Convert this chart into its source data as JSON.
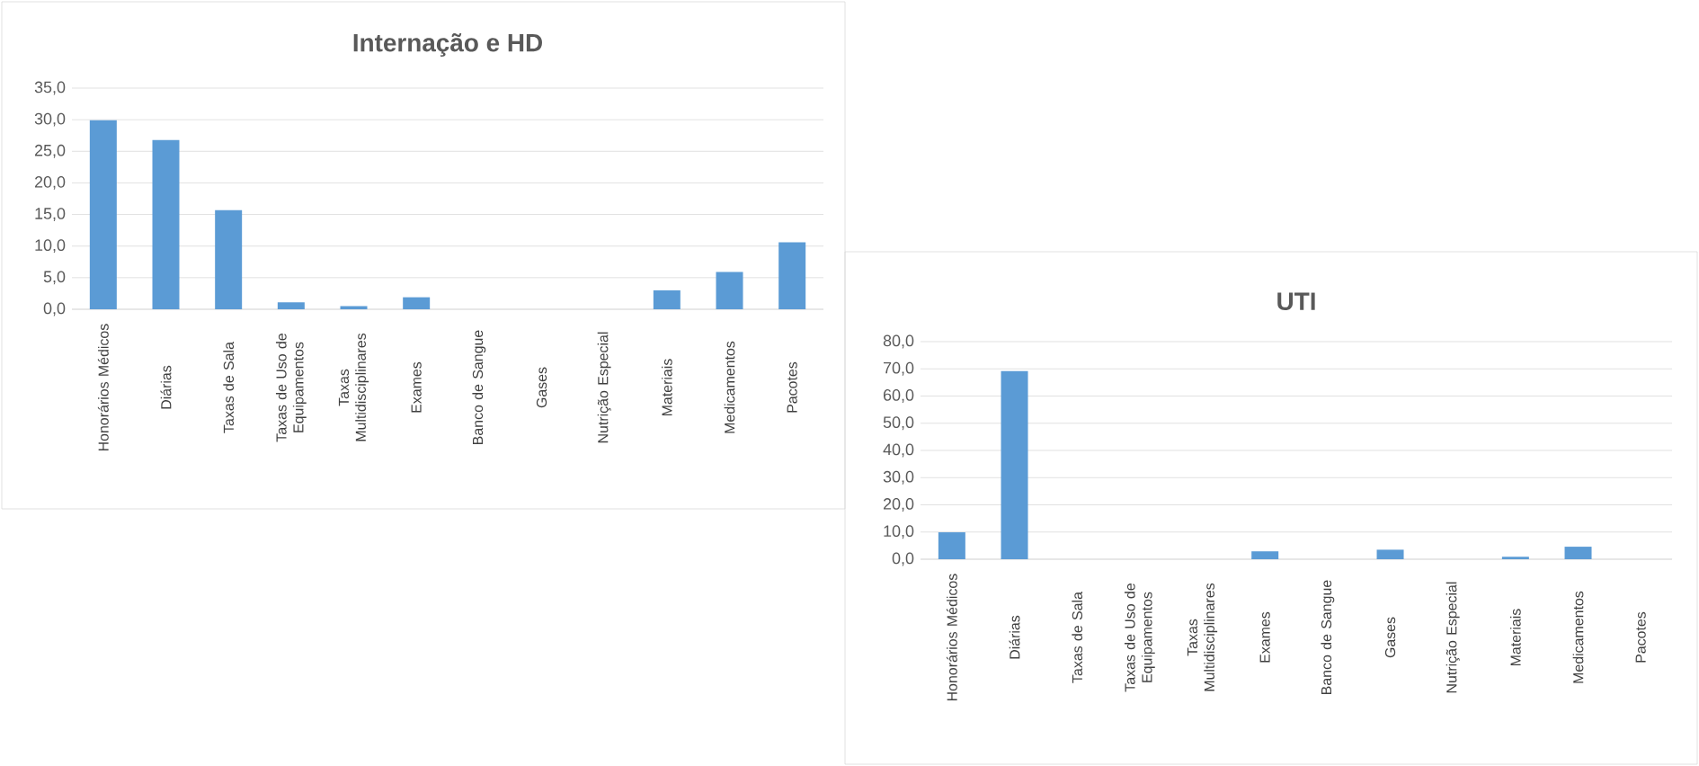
{
  "chart_data": [
    {
      "type": "bar",
      "title": "Internação e HD",
      "categories": [
        "Honorários Médicos",
        "Diárias",
        "Taxas de Sala",
        "Taxas de Uso de Equipamentos",
        "Taxas Multidisciplinares",
        "Exames",
        "Banco de Sangue",
        "Gases",
        "Nutrição Especial",
        "Materiais",
        "Medicamentos",
        "Pacotes"
      ],
      "values": [
        29.9,
        26.8,
        15.7,
        1.1,
        0.5,
        1.9,
        0,
        0,
        0,
        3.0,
        5.9,
        10.6
      ],
      "color": "#5b9bd5",
      "ylim": [
        0,
        35
      ],
      "yticks": [
        {
          "value": 0,
          "label": "0,0"
        },
        {
          "value": 5,
          "label": "5,0"
        },
        {
          "value": 10,
          "label": "10,0"
        },
        {
          "value": 15,
          "label": "15,0"
        },
        {
          "value": 20,
          "label": "20,0"
        },
        {
          "value": 25,
          "label": "25,0"
        },
        {
          "value": 30,
          "label": "30,0"
        },
        {
          "value": 35,
          "label": "35,0"
        }
      ],
      "grid": "y"
    },
    {
      "type": "bar",
      "title": "UTI",
      "categories": [
        "Honorários Médicos",
        "Diárias",
        "Taxas de Sala",
        "Taxas de Uso de Equipamentos",
        "Taxas Multidisciplinares",
        "Exames",
        "Banco de Sangue",
        "Gases",
        "Nutrição Especial",
        "Materiais",
        "Medicamentos",
        "Pacotes"
      ],
      "values": [
        9.9,
        69.2,
        0,
        0,
        0,
        2.9,
        0,
        3.5,
        0,
        0.9,
        4.6,
        0
      ],
      "color": "#5b9bd5",
      "ylim": [
        0,
        80
      ],
      "yticks": [
        {
          "value": 0,
          "label": "0,0"
        },
        {
          "value": 10,
          "label": "10,0"
        },
        {
          "value": 20,
          "label": "20,0"
        },
        {
          "value": 30,
          "label": "30,0"
        },
        {
          "value": 40,
          "label": "40,0"
        },
        {
          "value": 50,
          "label": "50,0"
        },
        {
          "value": 60,
          "label": "60,0"
        },
        {
          "value": 70,
          "label": "70,0"
        },
        {
          "value": 80,
          "label": "80,0"
        }
      ],
      "grid": "y"
    }
  ]
}
